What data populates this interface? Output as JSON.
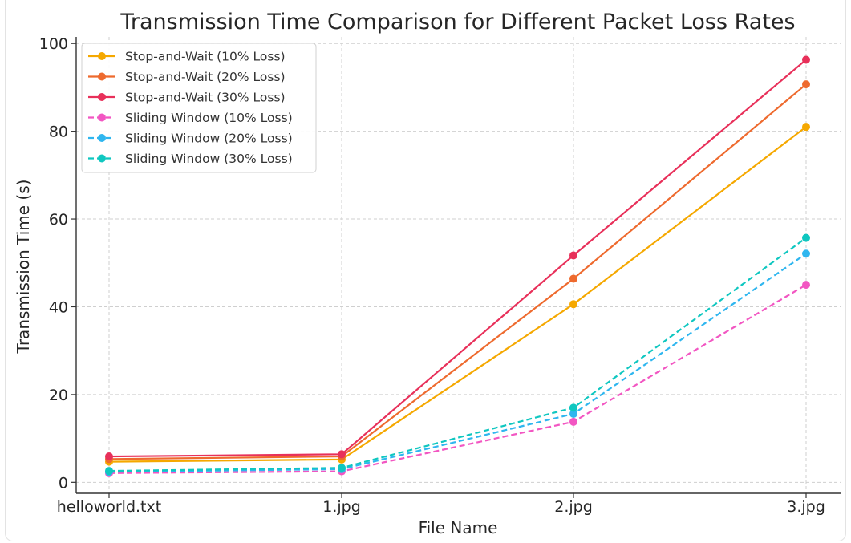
{
  "chart_data": {
    "type": "line",
    "title": "Transmission Time Comparison for Different Packet Loss Rates",
    "xlabel": "File Name",
    "ylabel": "Transmission Time (s)",
    "categories": [
      "helloworld.txt",
      "1.jpg",
      "2.jpg",
      "3.jpg"
    ],
    "ylim": [
      -2.5,
      101.5
    ],
    "yticks": [
      0,
      20,
      40,
      60,
      80,
      100
    ],
    "grid": true,
    "legend_position": "top-left",
    "series": [
      {
        "name": "Stop-and-Wait (10% Loss)",
        "values": [
          4.7,
          5.2,
          40.6,
          81.0
        ],
        "color": "#f5a800",
        "dashed": false
      },
      {
        "name": "Stop-and-Wait (20% Loss)",
        "values": [
          5.3,
          5.9,
          46.4,
          90.7
        ],
        "color": "#ee6a2e",
        "dashed": false
      },
      {
        "name": "Stop-and-Wait (30% Loss)",
        "values": [
          5.9,
          6.4,
          51.7,
          96.3
        ],
        "color": "#e8305a",
        "dashed": false
      },
      {
        "name": "Sliding Window (10% Loss)",
        "values": [
          2.1,
          2.5,
          13.8,
          45.0
        ],
        "color": "#f256c2",
        "dashed": true
      },
      {
        "name": "Sliding Window (20% Loss)",
        "values": [
          2.4,
          3.0,
          15.6,
          52.1
        ],
        "color": "#2fb6ef",
        "dashed": true
      },
      {
        "name": "Sliding Window (30% Loss)",
        "values": [
          2.6,
          3.3,
          17.0,
          55.7
        ],
        "color": "#0fc7c0",
        "dashed": true
      }
    ]
  }
}
